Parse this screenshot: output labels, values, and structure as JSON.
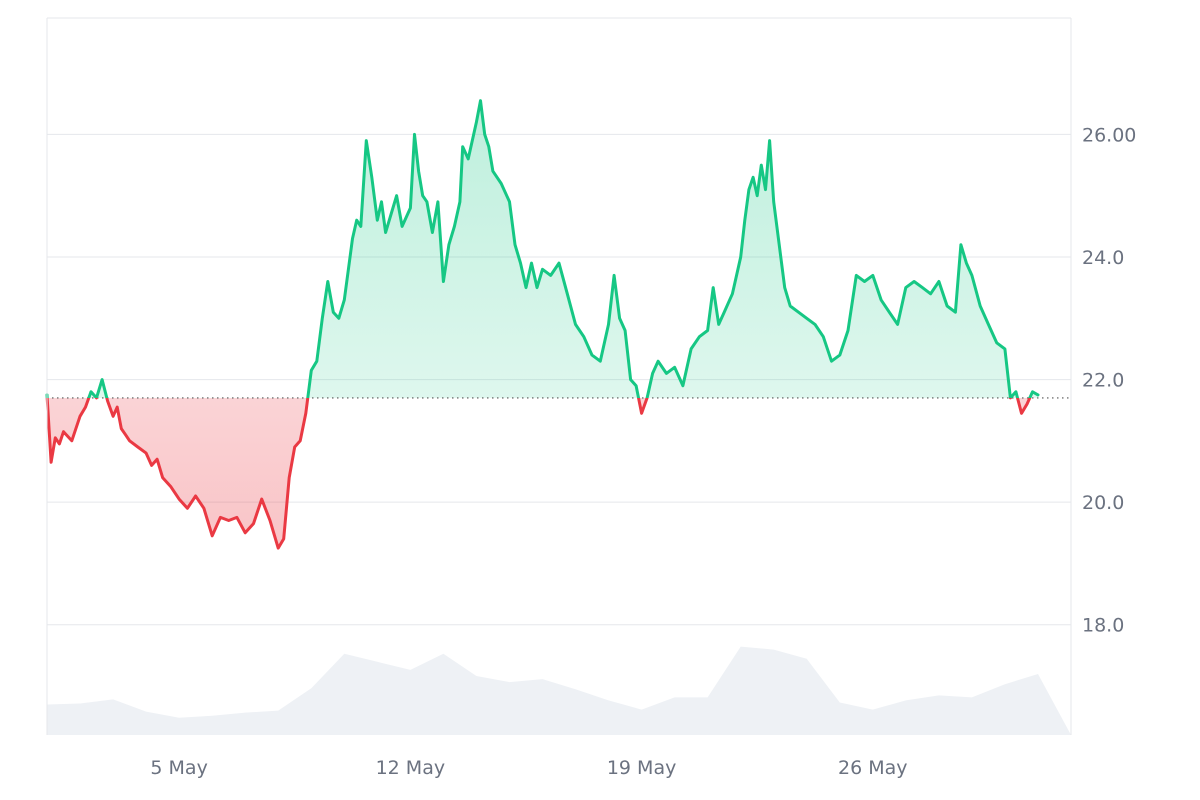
{
  "chart_data": {
    "type": "area",
    "title": "",
    "xlabel": "",
    "ylabel": "",
    "reference_value": 21.7,
    "x_range": [
      "2025-05-01",
      "2025-06-01"
    ],
    "ylim": [
      16.2,
      27.9
    ],
    "y_ticks": [
      {
        "value": 26.0,
        "label": "26.00"
      },
      {
        "value": 24.0,
        "label": "24.0"
      },
      {
        "value": 22.0,
        "label": "22.0"
      },
      {
        "value": 20.0,
        "label": "20.0"
      },
      {
        "value": 18.0,
        "label": "18.0"
      }
    ],
    "x_ticks": [
      {
        "date": "2025-05-05",
        "label": "5 May"
      },
      {
        "date": "2025-05-12",
        "label": "12 May"
      },
      {
        "date": "2025-05-19",
        "label": "19 May"
      },
      {
        "date": "2025-05-26",
        "label": "26 May"
      }
    ],
    "grid": true,
    "colors": {
      "above": "#16c784",
      "below": "#ea3943",
      "grid": "#e5e7eb",
      "volume": "#eef1f5",
      "reference": "#555555",
      "axis_text": "#6b7280"
    },
    "series": [
      {
        "values": [
          [
            "2025-05-01T00:00",
            21.75
          ],
          [
            "2025-05-01T03:00",
            20.65
          ],
          [
            "2025-05-01T06:00",
            21.05
          ],
          [
            "2025-05-01T09:00",
            20.95
          ],
          [
            "2025-05-01T12:00",
            21.15
          ],
          [
            "2025-05-01T18:00",
            21.0
          ],
          [
            "2025-05-02T00:00",
            21.4
          ],
          [
            "2025-05-02T04:00",
            21.55
          ],
          [
            "2025-05-02T08:00",
            21.8
          ],
          [
            "2025-05-02T12:00",
            21.7
          ],
          [
            "2025-05-02T16:00",
            22.0
          ],
          [
            "2025-05-02T20:00",
            21.65
          ],
          [
            "2025-05-03T00:00",
            21.4
          ],
          [
            "2025-05-03T03:00",
            21.55
          ],
          [
            "2025-05-03T06:00",
            21.2
          ],
          [
            "2025-05-03T09:00",
            21.1
          ],
          [
            "2025-05-03T12:00",
            21.0
          ],
          [
            "2025-05-03T18:00",
            20.9
          ],
          [
            "2025-05-04T00:00",
            20.8
          ],
          [
            "2025-05-04T04:00",
            20.6
          ],
          [
            "2025-05-04T08:00",
            20.7
          ],
          [
            "2025-05-04T12:00",
            20.4
          ],
          [
            "2025-05-04T18:00",
            20.25
          ],
          [
            "2025-05-05T00:00",
            20.05
          ],
          [
            "2025-05-05T06:00",
            19.9
          ],
          [
            "2025-05-05T12:00",
            20.1
          ],
          [
            "2025-05-05T18:00",
            19.9
          ],
          [
            "2025-05-06T00:00",
            19.45
          ],
          [
            "2025-05-06T06:00",
            19.75
          ],
          [
            "2025-05-06T12:00",
            19.7
          ],
          [
            "2025-05-06T18:00",
            19.75
          ],
          [
            "2025-05-07T00:00",
            19.5
          ],
          [
            "2025-05-07T06:00",
            19.65
          ],
          [
            "2025-05-07T12:00",
            20.05
          ],
          [
            "2025-05-07T18:00",
            19.7
          ],
          [
            "2025-05-08T00:00",
            19.25
          ],
          [
            "2025-05-08T04:00",
            19.4
          ],
          [
            "2025-05-08T08:00",
            20.4
          ],
          [
            "2025-05-08T12:00",
            20.9
          ],
          [
            "2025-05-08T16:00",
            21.0
          ],
          [
            "2025-05-08T20:00",
            21.45
          ],
          [
            "2025-05-09T00:00",
            22.15
          ],
          [
            "2025-05-09T04:00",
            22.3
          ],
          [
            "2025-05-09T08:00",
            23.0
          ],
          [
            "2025-05-09T12:00",
            23.6
          ],
          [
            "2025-05-09T16:00",
            23.1
          ],
          [
            "2025-05-09T20:00",
            23.0
          ],
          [
            "2025-05-10T00:00",
            23.3
          ],
          [
            "2025-05-10T03:00",
            23.8
          ],
          [
            "2025-05-10T06:00",
            24.3
          ],
          [
            "2025-05-10T09:00",
            24.6
          ],
          [
            "2025-05-10T12:00",
            24.5
          ],
          [
            "2025-05-10T16:00",
            25.9
          ],
          [
            "2025-05-10T20:00",
            25.3
          ],
          [
            "2025-05-11T00:00",
            24.6
          ],
          [
            "2025-05-11T03:00",
            24.9
          ],
          [
            "2025-05-11T06:00",
            24.4
          ],
          [
            "2025-05-11T10:00",
            24.7
          ],
          [
            "2025-05-11T14:00",
            25.0
          ],
          [
            "2025-05-11T18:00",
            24.5
          ],
          [
            "2025-05-12T00:00",
            24.8
          ],
          [
            "2025-05-12T03:00",
            26.0
          ],
          [
            "2025-05-12T06:00",
            25.4
          ],
          [
            "2025-05-12T09:00",
            25.0
          ],
          [
            "2025-05-12T12:00",
            24.9
          ],
          [
            "2025-05-12T16:00",
            24.4
          ],
          [
            "2025-05-12T20:00",
            24.9
          ],
          [
            "2025-05-13T00:00",
            23.6
          ],
          [
            "2025-05-13T04:00",
            24.2
          ],
          [
            "2025-05-13T08:00",
            24.5
          ],
          [
            "2025-05-13T12:00",
            24.9
          ],
          [
            "2025-05-13T14:00",
            25.8
          ],
          [
            "2025-05-13T18:00",
            25.6
          ],
          [
            "2025-05-14T00:00",
            26.2
          ],
          [
            "2025-05-14T03:00",
            26.55
          ],
          [
            "2025-05-14T06:00",
            26.0
          ],
          [
            "2025-05-14T09:00",
            25.8
          ],
          [
            "2025-05-14T12:00",
            25.4
          ],
          [
            "2025-05-14T18:00",
            25.2
          ],
          [
            "2025-05-15T00:00",
            24.9
          ],
          [
            "2025-05-15T04:00",
            24.2
          ],
          [
            "2025-05-15T08:00",
            23.9
          ],
          [
            "2025-05-15T12:00",
            23.5
          ],
          [
            "2025-05-15T16:00",
            23.9
          ],
          [
            "2025-05-15T20:00",
            23.5
          ],
          [
            "2025-05-16T00:00",
            23.8
          ],
          [
            "2025-05-16T06:00",
            23.7
          ],
          [
            "2025-05-16T12:00",
            23.9
          ],
          [
            "2025-05-16T18:00",
            23.4
          ],
          [
            "2025-05-17T00:00",
            22.9
          ],
          [
            "2025-05-17T06:00",
            22.7
          ],
          [
            "2025-05-17T12:00",
            22.4
          ],
          [
            "2025-05-17T18:00",
            22.3
          ],
          [
            "2025-05-18T00:00",
            22.9
          ],
          [
            "2025-05-18T04:00",
            23.7
          ],
          [
            "2025-05-18T08:00",
            23.0
          ],
          [
            "2025-05-18T12:00",
            22.8
          ],
          [
            "2025-05-18T16:00",
            22.0
          ],
          [
            "2025-05-18T20:00",
            21.9
          ],
          [
            "2025-05-19T00:00",
            21.45
          ],
          [
            "2025-05-19T04:00",
            21.7
          ],
          [
            "2025-05-19T08:00",
            22.1
          ],
          [
            "2025-05-19T12:00",
            22.3
          ],
          [
            "2025-05-19T18:00",
            22.1
          ],
          [
            "2025-05-20T00:00",
            22.2
          ],
          [
            "2025-05-20T06:00",
            21.9
          ],
          [
            "2025-05-20T12:00",
            22.5
          ],
          [
            "2025-05-20T18:00",
            22.7
          ],
          [
            "2025-05-21T00:00",
            22.8
          ],
          [
            "2025-05-21T04:00",
            23.5
          ],
          [
            "2025-05-21T08:00",
            22.9
          ],
          [
            "2025-05-21T12:00",
            23.1
          ],
          [
            "2025-05-21T18:00",
            23.4
          ],
          [
            "2025-05-22T00:00",
            24.0
          ],
          [
            "2025-05-22T03:00",
            24.6
          ],
          [
            "2025-05-22T06:00",
            25.1
          ],
          [
            "2025-05-22T09:00",
            25.3
          ],
          [
            "2025-05-22T12:00",
            25.0
          ],
          [
            "2025-05-22T15:00",
            25.5
          ],
          [
            "2025-05-22T18:00",
            25.1
          ],
          [
            "2025-05-22T21:00",
            25.9
          ],
          [
            "2025-05-23T00:00",
            24.9
          ],
          [
            "2025-05-23T04:00",
            24.2
          ],
          [
            "2025-05-23T08:00",
            23.5
          ],
          [
            "2025-05-23T12:00",
            23.2
          ],
          [
            "2025-05-23T18:00",
            23.1
          ],
          [
            "2025-05-24T00:00",
            23.0
          ],
          [
            "2025-05-24T06:00",
            22.9
          ],
          [
            "2025-05-24T12:00",
            22.7
          ],
          [
            "2025-05-24T18:00",
            22.3
          ],
          [
            "2025-05-25T00:00",
            22.4
          ],
          [
            "2025-05-25T06:00",
            22.8
          ],
          [
            "2025-05-25T12:00",
            23.7
          ],
          [
            "2025-05-25T18:00",
            23.6
          ],
          [
            "2025-05-26T00:00",
            23.7
          ],
          [
            "2025-05-26T06:00",
            23.3
          ],
          [
            "2025-05-26T12:00",
            23.1
          ],
          [
            "2025-05-26T18:00",
            22.9
          ],
          [
            "2025-05-27T00:00",
            23.5
          ],
          [
            "2025-05-27T06:00",
            23.6
          ],
          [
            "2025-05-27T12:00",
            23.5
          ],
          [
            "2025-05-27T18:00",
            23.4
          ],
          [
            "2025-05-28T00:00",
            23.6
          ],
          [
            "2025-05-28T06:00",
            23.2
          ],
          [
            "2025-05-28T12:00",
            23.1
          ],
          [
            "2025-05-28T16:00",
            24.2
          ],
          [
            "2025-05-28T20:00",
            23.9
          ],
          [
            "2025-05-29T00:00",
            23.7
          ],
          [
            "2025-05-29T06:00",
            23.2
          ],
          [
            "2025-05-29T12:00",
            22.9
          ],
          [
            "2025-05-29T18:00",
            22.6
          ],
          [
            "2025-05-30T00:00",
            22.5
          ],
          [
            "2025-05-30T04:00",
            21.7
          ],
          [
            "2025-05-30T08:00",
            21.8
          ],
          [
            "2025-05-30T12:00",
            21.45
          ],
          [
            "2025-05-30T16:00",
            21.6
          ],
          [
            "2025-05-30T20:00",
            21.8
          ],
          [
            "2025-05-31T00:00",
            21.75
          ]
        ]
      }
    ],
    "volume": {
      "values": [
        [
          "2025-05-01",
          0.3
        ],
        [
          "2025-05-02",
          0.31
        ],
        [
          "2025-05-03",
          0.35
        ],
        [
          "2025-05-04",
          0.23
        ],
        [
          "2025-05-05",
          0.17
        ],
        [
          "2025-05-06",
          0.19
        ],
        [
          "2025-05-07",
          0.22
        ],
        [
          "2025-05-08",
          0.24
        ],
        [
          "2025-05-09",
          0.46
        ],
        [
          "2025-05-10",
          0.8
        ],
        [
          "2025-05-11",
          0.72
        ],
        [
          "2025-05-12",
          0.64
        ],
        [
          "2025-05-13",
          0.8
        ],
        [
          "2025-05-14",
          0.58
        ],
        [
          "2025-05-15",
          0.52
        ],
        [
          "2025-05-16",
          0.55
        ],
        [
          "2025-05-17",
          0.45
        ],
        [
          "2025-05-18",
          0.34
        ],
        [
          "2025-05-19",
          0.25
        ],
        [
          "2025-05-20",
          0.37
        ],
        [
          "2025-05-21",
          0.37
        ],
        [
          "2025-05-22",
          0.87
        ],
        [
          "2025-05-23",
          0.84
        ],
        [
          "2025-05-24",
          0.75
        ],
        [
          "2025-05-25",
          0.32
        ],
        [
          "2025-05-26",
          0.25
        ],
        [
          "2025-05-27",
          0.34
        ],
        [
          "2025-05-28",
          0.39
        ],
        [
          "2025-05-29",
          0.37
        ],
        [
          "2025-05-30",
          0.5
        ],
        [
          "2025-05-31",
          0.6
        ]
      ]
    }
  }
}
